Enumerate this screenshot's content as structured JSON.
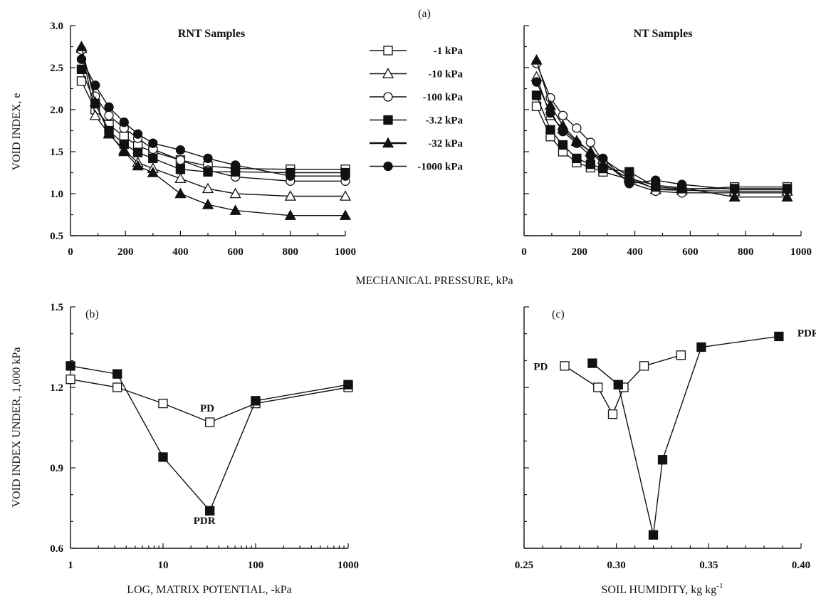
{
  "figure_label": "(a)",
  "shared_xlabel_a": "MECHANICAL PRESSURE, kPa",
  "chart_data": [
    {
      "id": "a_rnt",
      "type": "line",
      "title": "RNT Samples",
      "ylabel": "VOID INDEX, e",
      "xlim": [
        0,
        1000
      ],
      "ylim": [
        0.5,
        3.0
      ],
      "xticks": [
        "0",
        "200",
        "400",
        "600",
        "800",
        "1000"
      ],
      "yticks": [
        "0.5",
        "1.0",
        "1.5",
        "2.0",
        "2.5",
        "3.0"
      ],
      "legend_position": "right",
      "x": [
        40,
        90,
        140,
        195,
        245,
        300,
        400,
        500,
        600,
        800,
        1000
      ],
      "series": [
        {
          "name": "-1 kPa",
          "marker": "square-open",
          "values": [
            2.34,
            2.0,
            1.82,
            1.68,
            1.57,
            1.5,
            1.4,
            1.33,
            1.3,
            1.29,
            1.29
          ]
        },
        {
          "name": "-10 kPa",
          "marker": "triangle-open",
          "values": [
            2.73,
            1.93,
            1.71,
            1.52,
            1.37,
            1.3,
            1.18,
            1.06,
            1.0,
            0.97,
            0.97
          ]
        },
        {
          "name": "-100 kPa",
          "marker": "circle-open",
          "values": [
            2.71,
            2.16,
            1.93,
            1.78,
            1.66,
            1.53,
            1.4,
            1.28,
            1.2,
            1.15,
            1.15
          ]
        },
        {
          "name": "-3.2 kPa",
          "marker": "square-filled",
          "values": [
            2.48,
            2.07,
            1.75,
            1.59,
            1.49,
            1.42,
            1.29,
            1.26,
            1.26,
            1.25,
            1.25
          ]
        },
        {
          "name": "-32 kPa",
          "marker": "triangle-filled",
          "values": [
            2.75,
            2.09,
            1.72,
            1.5,
            1.33,
            1.25,
            1.0,
            0.87,
            0.8,
            0.74,
            0.74
          ]
        },
        {
          "name": "-1000 kPa",
          "marker": "circle-filled",
          "values": [
            2.6,
            2.29,
            2.03,
            1.85,
            1.71,
            1.6,
            1.52,
            1.42,
            1.34,
            1.21,
            1.21
          ]
        }
      ]
    },
    {
      "id": "a_nt",
      "type": "line",
      "title": "NT Samples",
      "xlim": [
        0,
        1000
      ],
      "ylim": [
        0.5,
        3.0
      ],
      "xticks": [
        "0",
        "200",
        "400",
        "600",
        "800",
        "1000"
      ],
      "x": [
        45,
        95,
        140,
        190,
        240,
        285,
        380,
        475,
        570,
        760,
        950
      ],
      "series": [
        {
          "name": "-1 kPa",
          "marker": "square-open",
          "values": [
            2.04,
            1.68,
            1.5,
            1.37,
            1.31,
            1.26,
            1.17,
            1.06,
            1.05,
            1.08,
            1.08
          ]
        },
        {
          "name": "-10 kPa",
          "marker": "triangle-open",
          "values": [
            2.39,
            1.93,
            1.77,
            1.62,
            1.5,
            1.41,
            1.2,
            1.05,
            1.04,
            1.03,
            1.03
          ]
        },
        {
          "name": "-100 kPa",
          "marker": "circle-open",
          "values": [
            2.55,
            2.14,
            1.93,
            1.78,
            1.61,
            1.38,
            1.13,
            1.03,
            1.01,
            1.01,
            1.01
          ]
        },
        {
          "name": "-3.2 kPa",
          "marker": "square-filled",
          "values": [
            2.17,
            1.76,
            1.58,
            1.42,
            1.35,
            1.3,
            1.26,
            1.08,
            1.06,
            1.06,
            1.06
          ]
        },
        {
          "name": "-32 kPa",
          "marker": "triangle-filled",
          "values": [
            2.59,
            2.05,
            1.81,
            1.63,
            1.5,
            1.35,
            1.18,
            1.1,
            1.07,
            0.96,
            0.96
          ]
        },
        {
          "name": "-1000 kPa",
          "marker": "circle-filled",
          "values": [
            2.33,
            1.96,
            1.74,
            1.6,
            1.45,
            1.42,
            1.12,
            1.16,
            1.11,
            1.05,
            1.05
          ]
        }
      ]
    },
    {
      "id": "b",
      "type": "line",
      "panel_label": "(b)",
      "xscale": "log",
      "xlabel": "LOG, MATRIX POTENTIAL, -kPa",
      "ylabel": "VOID INDEX UNDER, 1,000 kPa",
      "xlim": [
        1,
        1000
      ],
      "ylim": [
        0.6,
        1.5
      ],
      "xticks": [
        "1",
        "10",
        "100",
        "1000"
      ],
      "yticks": [
        "0.6",
        "0.9",
        "1.2",
        "1.5"
      ],
      "x": [
        1,
        3.2,
        10,
        32,
        100,
        1000
      ],
      "series": [
        {
          "name": "PD",
          "marker": "square-open",
          "values": [
            1.23,
            1.2,
            1.14,
            1.07,
            1.14,
            1.2
          ]
        },
        {
          "name": "PDR",
          "marker": "square-filled",
          "values": [
            1.28,
            1.25,
            0.94,
            0.74,
            1.15,
            1.21
          ]
        }
      ],
      "annotations": [
        {
          "text": "PD",
          "x": 30,
          "y": 1.11
        },
        {
          "text": "PDR",
          "x": 28,
          "y": 0.69
        }
      ]
    },
    {
      "id": "c",
      "type": "line",
      "panel_label": "(c)",
      "xlabel": "SOIL HUMIDITY, kg kg",
      "xlabel_sup": "-1",
      "xlim": [
        0.25,
        0.4
      ],
      "ylim": [
        0.6,
        1.5
      ],
      "xticks": [
        "0.25",
        "0.30",
        "0.35",
        "0.40"
      ],
      "series": [
        {
          "name": "PD",
          "marker": "square-open",
          "x": [
            0.272,
            0.29,
            0.298,
            0.304,
            0.315,
            0.335
          ],
          "values": [
            1.28,
            1.2,
            1.1,
            1.2,
            1.28,
            1.32
          ]
        },
        {
          "name": "PDR",
          "marker": "square-filled",
          "x": [
            0.287,
            0.301,
            0.32,
            0.325,
            0.346,
            0.388
          ],
          "values": [
            1.29,
            1.21,
            0.65,
            0.93,
            1.35,
            1.39
          ]
        }
      ],
      "annotations": [
        {
          "text": "PD",
          "x": 0.259,
          "y": 1.265
        },
        {
          "text": "PDR",
          "x": 0.398,
          "y": 1.39
        }
      ]
    }
  ]
}
